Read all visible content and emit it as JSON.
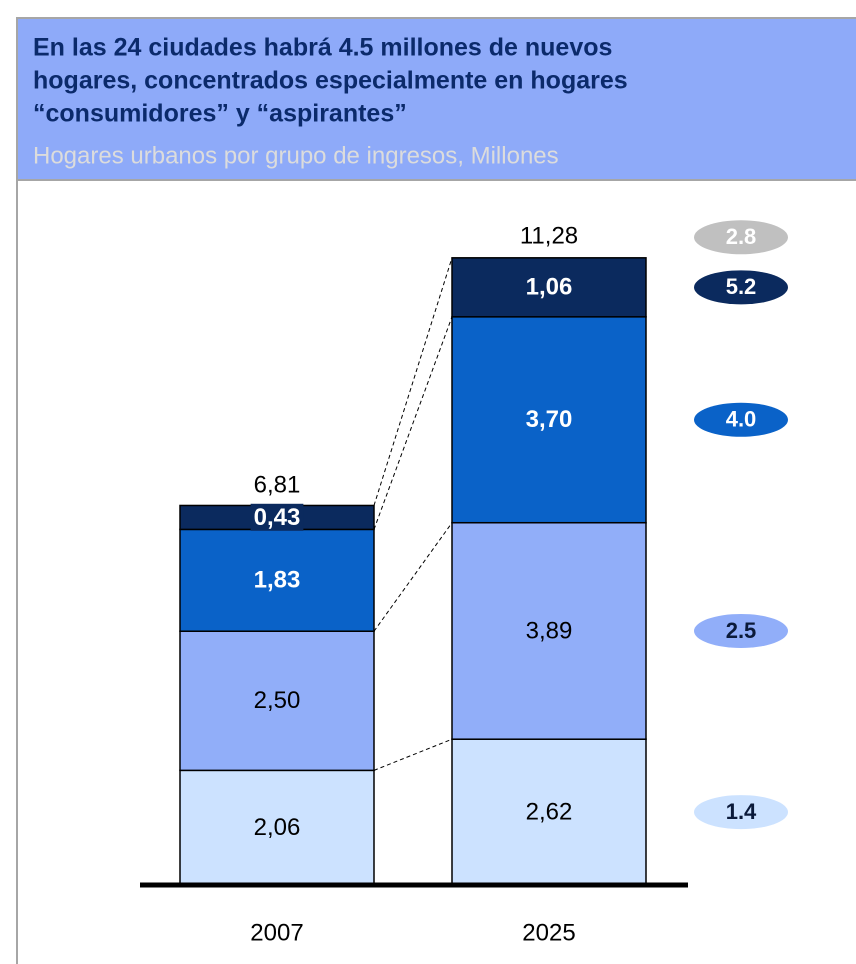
{
  "chart_data": {
    "type": "stacked-bar",
    "title": [
      "En las 24 ciudades habrá 4.5  millones de nuevos",
      "hogares, concentrados especialmente en hogares",
      "“consumidores” y “aspirantes”"
    ],
    "subtitle": "Hogares urbanos por grupo de ingresos, Millones",
    "categories": [
      "2007",
      "2025"
    ],
    "series": [
      {
        "color": "#cce2ff",
        "values": [
          2.06,
          2.62
        ],
        "value_labels": [
          "2,06",
          "2,62"
        ],
        "badge": 1.4
      },
      {
        "color": "#91aef9",
        "values": [
          2.5,
          3.89
        ],
        "value_labels": [
          "2,50",
          "3,89"
        ],
        "badge": 2.5
      },
      {
        "color": "#0a62c8",
        "values": [
          1.83,
          3.7
        ],
        "value_labels": [
          "1,83",
          "3,70"
        ],
        "badge": {
          "value": 4,
          "label": "4.0"
        }
      },
      {
        "color": "#0b2a5e",
        "values": [
          0.43,
          1.06
        ],
        "value_labels": [
          "0,43",
          "1,06"
        ],
        "badge": 5.2
      }
    ],
    "totals": [
      6.81,
      11.28
    ],
    "total_labels": [
      "6,81",
      "11,28"
    ],
    "total_badge": {
      "value": 2.8,
      "color": "#c0c0c0"
    }
  }
}
